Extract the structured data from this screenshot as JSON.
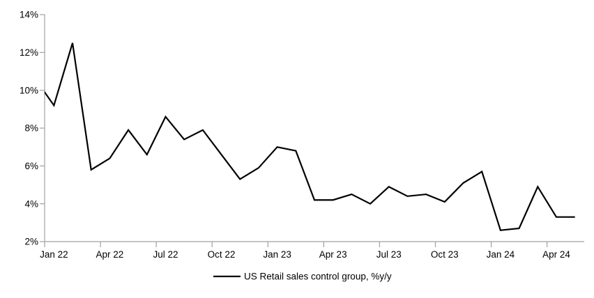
{
  "chart_data": {
    "type": "line",
    "title": "",
    "grid": "off",
    "background": "#ffffff",
    "axis_color": "#a0a0a0",
    "line_color": "#000000",
    "y_axis": {
      "min": 2,
      "max": 14,
      "step": 2,
      "unit": "%",
      "tick_labels": [
        "14%",
        "12%",
        "10%",
        "8%",
        "6%",
        "4%",
        "2%"
      ]
    },
    "x_axis": {
      "tick_labels": [
        "Jan 22",
        "Apr 22",
        "Jul 22",
        "Oct 22",
        "Jan 23",
        "Apr 23",
        "Jul 23",
        "Oct 23",
        "Jan 24",
        "Apr 24"
      ],
      "tick_every_months": 3,
      "visible_start": "Jan 22",
      "visible_end": "May 24"
    },
    "series": [
      {
        "name": "US Retail sales control group, %y/y",
        "color": "#000000",
        "x": [
          "Dec 21",
          "Jan 22",
          "Feb 22",
          "Mar 22",
          "Apr 22",
          "May 22",
          "Jun 22",
          "Jul 22",
          "Aug 22",
          "Sep 22",
          "Oct 22",
          "Nov 22",
          "Dec 22",
          "Jan 23",
          "Feb 23",
          "Mar 23",
          "Apr 23",
          "May 23",
          "Jun 23",
          "Jul 23",
          "Aug 23",
          "Sep 23",
          "Oct 23",
          "Nov 23",
          "Dec 23",
          "Jan 24",
          "Feb 24",
          "Mar 24",
          "Apr 24",
          "May 24"
        ],
        "y": [
          10.6,
          9.2,
          12.5,
          5.8,
          6.4,
          7.9,
          6.6,
          8.6,
          7.4,
          7.9,
          6.6,
          5.3,
          5.9,
          7.0,
          6.8,
          4.2,
          4.2,
          4.5,
          4.0,
          4.9,
          4.4,
          4.5,
          4.1,
          5.1,
          5.7,
          2.6,
          2.7,
          4.9,
          3.3,
          3.3
        ]
      }
    ],
    "legend": {
      "position": "bottom-center",
      "label": "US Retail sales control group, %y/y"
    }
  }
}
